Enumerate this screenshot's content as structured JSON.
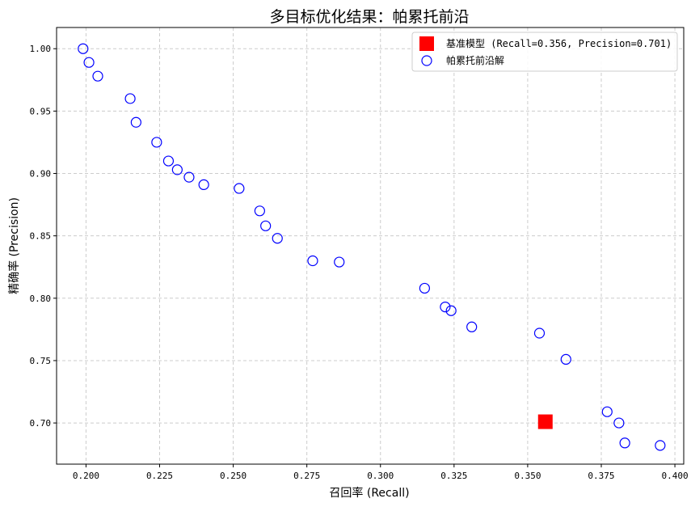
{
  "chart_data": {
    "type": "scatter",
    "title": "多目标优化结果：帕累托前沿",
    "xlabel": "召回率 (Recall)",
    "ylabel": "精确率 (Precision)",
    "xlim": [
      0.19,
      0.403
    ],
    "ylim": [
      0.667,
      1.017
    ],
    "xticks": [
      0.2,
      0.225,
      0.25,
      0.275,
      0.3,
      0.325,
      0.35,
      0.375,
      0.4
    ],
    "xtick_labels": [
      "0.200",
      "0.225",
      "0.250",
      "0.275",
      "0.300",
      "0.325",
      "0.350",
      "0.375",
      "0.400"
    ],
    "yticks": [
      0.7,
      0.75,
      0.8,
      0.85,
      0.9,
      0.95,
      1.0
    ],
    "ytick_labels": [
      "0.70",
      "0.75",
      "0.80",
      "0.85",
      "0.90",
      "0.95",
      "1.00"
    ],
    "grid": true,
    "legend_position": "top-right",
    "series": [
      {
        "name": "基准模型 (Recall=0.356, Precision=0.701)",
        "marker": "square",
        "color": "#ff0000",
        "points": [
          [
            0.356,
            0.701
          ]
        ]
      },
      {
        "name": "帕累托前沿解",
        "marker": "hollow-circle",
        "color": "#0000ff",
        "points": [
          [
            0.199,
            1.0
          ],
          [
            0.201,
            0.989
          ],
          [
            0.204,
            0.978
          ],
          [
            0.215,
            0.96
          ],
          [
            0.217,
            0.941
          ],
          [
            0.224,
            0.925
          ],
          [
            0.228,
            0.91
          ],
          [
            0.231,
            0.903
          ],
          [
            0.235,
            0.897
          ],
          [
            0.24,
            0.891
          ],
          [
            0.252,
            0.888
          ],
          [
            0.259,
            0.87
          ],
          [
            0.261,
            0.858
          ],
          [
            0.265,
            0.848
          ],
          [
            0.277,
            0.83
          ],
          [
            0.286,
            0.829
          ],
          [
            0.315,
            0.808
          ],
          [
            0.322,
            0.793
          ],
          [
            0.324,
            0.79
          ],
          [
            0.331,
            0.777
          ],
          [
            0.354,
            0.772
          ],
          [
            0.363,
            0.751
          ],
          [
            0.377,
            0.709
          ],
          [
            0.381,
            0.7
          ],
          [
            0.383,
            0.684
          ],
          [
            0.395,
            0.682
          ]
        ]
      }
    ]
  }
}
